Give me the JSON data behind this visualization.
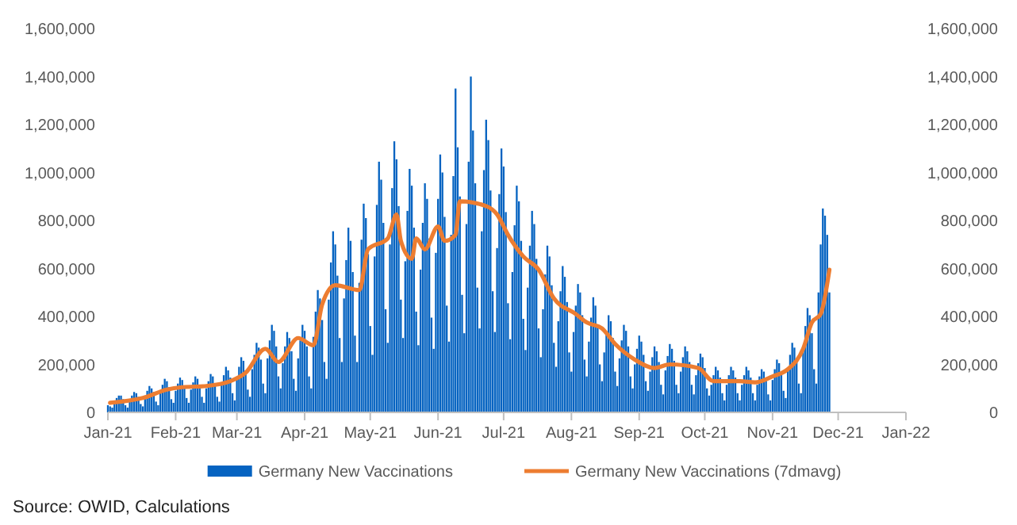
{
  "chart_data": {
    "type": "bar",
    "x": [
      "2021-01-01",
      "2021-01-02",
      "2021-01-03",
      "2021-01-04",
      "2021-01-05",
      "2021-01-06",
      "2021-01-07",
      "2021-01-08",
      "2021-01-09",
      "2021-01-10",
      "2021-01-11",
      "2021-01-12",
      "2021-01-13",
      "2021-01-14",
      "2021-01-15",
      "2021-01-16",
      "2021-01-17",
      "2021-01-18",
      "2021-01-19",
      "2021-01-20",
      "2021-01-21",
      "2021-01-22",
      "2021-01-23",
      "2021-01-24",
      "2021-01-25",
      "2021-01-26",
      "2021-01-27",
      "2021-01-28",
      "2021-01-29",
      "2021-01-30",
      "2021-01-31",
      "2021-02-01",
      "2021-02-02",
      "2021-02-03",
      "2021-02-04",
      "2021-02-05",
      "2021-02-06",
      "2021-02-07",
      "2021-02-08",
      "2021-02-09",
      "2021-02-10",
      "2021-02-11",
      "2021-02-12",
      "2021-02-13",
      "2021-02-14",
      "2021-02-15",
      "2021-02-16",
      "2021-02-17",
      "2021-02-18",
      "2021-02-19",
      "2021-02-20",
      "2021-02-21",
      "2021-02-22",
      "2021-02-23",
      "2021-02-24",
      "2021-02-25",
      "2021-02-26",
      "2021-02-27",
      "2021-02-28",
      "2021-03-01",
      "2021-03-02",
      "2021-03-03",
      "2021-03-04",
      "2021-03-05",
      "2021-03-06",
      "2021-03-07",
      "2021-03-08",
      "2021-03-09",
      "2021-03-10",
      "2021-03-11",
      "2021-03-12",
      "2021-03-13",
      "2021-03-14",
      "2021-03-15",
      "2021-03-16",
      "2021-03-17",
      "2021-03-18",
      "2021-03-19",
      "2021-03-20",
      "2021-03-21",
      "2021-03-22",
      "2021-03-23",
      "2021-03-24",
      "2021-03-25",
      "2021-03-26",
      "2021-03-27",
      "2021-03-28",
      "2021-03-29",
      "2021-03-30",
      "2021-03-31",
      "2021-04-01",
      "2021-04-02",
      "2021-04-03",
      "2021-04-04",
      "2021-04-05",
      "2021-04-06",
      "2021-04-07",
      "2021-04-08",
      "2021-04-09",
      "2021-04-10",
      "2021-04-11",
      "2021-04-12",
      "2021-04-13",
      "2021-04-14",
      "2021-04-15",
      "2021-04-16",
      "2021-04-17",
      "2021-04-18",
      "2021-04-19",
      "2021-04-20",
      "2021-04-21",
      "2021-04-22",
      "2021-04-23",
      "2021-04-24",
      "2021-04-25",
      "2021-04-26",
      "2021-04-27",
      "2021-04-28",
      "2021-04-29",
      "2021-04-30",
      "2021-05-01",
      "2021-05-02",
      "2021-05-03",
      "2021-05-04",
      "2021-05-05",
      "2021-05-06",
      "2021-05-07",
      "2021-05-08",
      "2021-05-09",
      "2021-05-10",
      "2021-05-11",
      "2021-05-12",
      "2021-05-13",
      "2021-05-14",
      "2021-05-15",
      "2021-05-16",
      "2021-05-17",
      "2021-05-18",
      "2021-05-19",
      "2021-05-20",
      "2021-05-21",
      "2021-05-22",
      "2021-05-23",
      "2021-05-24",
      "2021-05-25",
      "2021-05-26",
      "2021-05-27",
      "2021-05-28",
      "2021-05-29",
      "2021-05-30",
      "2021-05-31",
      "2021-06-01",
      "2021-06-02",
      "2021-06-03",
      "2021-06-04",
      "2021-06-05",
      "2021-06-06",
      "2021-06-07",
      "2021-06-08",
      "2021-06-09",
      "2021-06-10",
      "2021-06-11",
      "2021-06-12",
      "2021-06-13",
      "2021-06-14",
      "2021-06-15",
      "2021-06-16",
      "2021-06-17",
      "2021-06-18",
      "2021-06-19",
      "2021-06-20",
      "2021-06-21",
      "2021-06-22",
      "2021-06-23",
      "2021-06-24",
      "2021-06-25",
      "2021-06-26",
      "2021-06-27",
      "2021-06-28",
      "2021-06-29",
      "2021-06-30",
      "2021-07-01",
      "2021-07-02",
      "2021-07-03",
      "2021-07-04",
      "2021-07-05",
      "2021-07-06",
      "2021-07-07",
      "2021-07-08",
      "2021-07-09",
      "2021-07-10",
      "2021-07-11",
      "2021-07-12",
      "2021-07-13",
      "2021-07-14",
      "2021-07-15",
      "2021-07-16",
      "2021-07-17",
      "2021-07-18",
      "2021-07-19",
      "2021-07-20",
      "2021-07-21",
      "2021-07-22",
      "2021-07-23",
      "2021-07-24",
      "2021-07-25",
      "2021-07-26",
      "2021-07-27",
      "2021-07-28",
      "2021-07-29",
      "2021-07-30",
      "2021-07-31",
      "2021-08-01",
      "2021-08-02",
      "2021-08-03",
      "2021-08-04",
      "2021-08-05",
      "2021-08-06",
      "2021-08-07",
      "2021-08-08",
      "2021-08-09",
      "2021-08-10",
      "2021-08-11",
      "2021-08-12",
      "2021-08-13",
      "2021-08-14",
      "2021-08-15",
      "2021-08-16",
      "2021-08-17",
      "2021-08-18",
      "2021-08-19",
      "2021-08-20",
      "2021-08-21",
      "2021-08-22",
      "2021-08-23",
      "2021-08-24",
      "2021-08-25",
      "2021-08-26",
      "2021-08-27",
      "2021-08-28",
      "2021-08-29",
      "2021-08-30",
      "2021-08-31",
      "2021-09-01",
      "2021-09-02",
      "2021-09-03",
      "2021-09-04",
      "2021-09-05",
      "2021-09-06",
      "2021-09-07",
      "2021-09-08",
      "2021-09-09",
      "2021-09-10",
      "2021-09-11",
      "2021-09-12",
      "2021-09-13",
      "2021-09-14",
      "2021-09-15",
      "2021-09-16",
      "2021-09-17",
      "2021-09-18",
      "2021-09-19",
      "2021-09-20",
      "2021-09-21",
      "2021-09-22",
      "2021-09-23",
      "2021-09-24",
      "2021-09-25",
      "2021-09-26",
      "2021-09-27",
      "2021-09-28",
      "2021-09-29",
      "2021-09-30",
      "2021-10-01",
      "2021-10-02",
      "2021-10-03",
      "2021-10-04",
      "2021-10-05",
      "2021-10-06",
      "2021-10-07",
      "2021-10-08",
      "2021-10-09",
      "2021-10-10",
      "2021-10-11",
      "2021-10-12",
      "2021-10-13",
      "2021-10-14",
      "2021-10-15",
      "2021-10-16",
      "2021-10-17",
      "2021-10-18",
      "2021-10-19",
      "2021-10-20",
      "2021-10-21",
      "2021-10-22",
      "2021-10-23",
      "2021-10-24",
      "2021-10-25",
      "2021-10-26",
      "2021-10-27",
      "2021-10-28",
      "2021-10-29",
      "2021-10-30",
      "2021-10-31",
      "2021-11-01",
      "2021-11-02",
      "2021-11-03",
      "2021-11-04",
      "2021-11-05",
      "2021-11-06",
      "2021-11-07",
      "2021-11-08",
      "2021-11-09",
      "2021-11-10",
      "2021-11-11",
      "2021-11-12",
      "2021-11-13",
      "2021-11-14",
      "2021-11-15",
      "2021-11-16",
      "2021-11-17",
      "2021-11-18",
      "2021-11-19",
      "2021-11-20",
      "2021-11-21",
      "2021-11-22",
      "2021-11-23",
      "2021-11-24",
      "2021-11-25",
      "2021-11-26",
      "2021-11-27"
    ],
    "series": [
      {
        "name": "Germany New Vaccinations",
        "color": "#0563c1",
        "values": [
          30000,
          25000,
          20000,
          45000,
          60000,
          70000,
          70000,
          55000,
          30000,
          20000,
          55000,
          70000,
          85000,
          80000,
          65000,
          35000,
          25000,
          70000,
          90000,
          110000,
          100000,
          85000,
          45000,
          30000,
          85000,
          115000,
          140000,
          130000,
          105000,
          55000,
          40000,
          90000,
          120000,
          145000,
          135000,
          110000,
          60000,
          40000,
          95000,
          125000,
          150000,
          140000,
          115000,
          65000,
          40000,
          100000,
          130000,
          160000,
          150000,
          120000,
          65000,
          45000,
          115000,
          155000,
          190000,
          175000,
          145000,
          80000,
          50000,
          145000,
          190000,
          230000,
          215000,
          175000,
          95000,
          65000,
          180000,
          240000,
          290000,
          270000,
          220000,
          120000,
          80000,
          225000,
          300000,
          365000,
          340000,
          275000,
          150000,
          100000,
          205000,
          275000,
          335000,
          310000,
          255000,
          140000,
          90000,
          225000,
          300000,
          365000,
          340000,
          275000,
          150000,
          100000,
          315000,
          420000,
          510000,
          475000,
          385000,
          210000,
          140000,
          470000,
          625000,
          755000,
          700000,
          570000,
          310000,
          210000,
          475000,
          635000,
          770000,
          715000,
          585000,
          320000,
          210000,
          540000,
          720000,
          870000,
          810000,
          660000,
          360000,
          240000,
          650000,
          865000,
          1045000,
          970000,
          790000,
          430000,
          290000,
          700000,
          935000,
          1130000,
          1055000,
          860000,
          470000,
          310000,
          630000,
          840000,
          1015000,
          945000,
          770000,
          420000,
          280000,
          595000,
          790000,
          955000,
          890000,
          725000,
          395000,
          265000,
          665000,
          890000,
          1075000,
          1000000,
          815000,
          445000,
          295000,
          740000,
          985000,
          1350000,
          1105000,
          900000,
          490000,
          330000,
          785000,
          1045000,
          1400000,
          1175000,
          955000,
          520000,
          350000,
          755000,
          1010000,
          1220000,
          1135000,
          925000,
          505000,
          335000,
          685000,
          910000,
          1100000,
          1025000,
          835000,
          455000,
          305000,
          585000,
          780000,
          945000,
          880000,
          715000,
          390000,
          260000,
          520000,
          695000,
          840000,
          785000,
          640000,
          350000,
          230000,
          430000,
          575000,
          695000,
          650000,
          530000,
          290000,
          190000,
          380000,
          505000,
          610000,
          565000,
          460000,
          250000,
          170000,
          335000,
          445000,
          535000,
          500000,
          405000,
          220000,
          150000,
          295000,
          395000,
          480000,
          445000,
          365000,
          200000,
          130000,
          250000,
          335000,
          405000,
          380000,
          310000,
          170000,
          110000,
          225000,
          300000,
          365000,
          340000,
          275000,
          150000,
          100000,
          200000,
          265000,
          320000,
          295000,
          240000,
          130000,
          90000,
          170000,
          230000,
          275000,
          255000,
          210000,
          115000,
          75000,
          175000,
          235000,
          285000,
          265000,
          215000,
          115000,
          80000,
          170000,
          230000,
          275000,
          255000,
          210000,
          115000,
          75000,
          155000,
          205000,
          245000,
          230000,
          185000,
          100000,
          70000,
          115000,
          155000,
          190000,
          175000,
          145000,
          80000,
          50000,
          115000,
          155000,
          190000,
          175000,
          145000,
          80000,
          50000,
          115000,
          155000,
          190000,
          175000,
          145000,
          80000,
          50000,
          115000,
          150000,
          180000,
          170000,
          140000,
          75000,
          50000,
          135000,
          180000,
          220000,
          205000,
          165000,
          90000,
          60000,
          180000,
          240000,
          290000,
          270000,
          220000,
          120000,
          80000,
          270000,
          360000,
          435000,
          405000,
          330000,
          180000,
          120000,
          500000,
          700000,
          850000,
          820000,
          740000,
          500000
        ]
      },
      {
        "name": "Germany New Vaccinations (7dmavg)",
        "type": "line",
        "color": "#ed7d31",
        "x": [
          "2021-01-02",
          "2021-01-17",
          "2021-01-28",
          "2021-02-04",
          "2021-02-15",
          "2021-02-26",
          "2021-03-05",
          "2021-03-14",
          "2021-03-20",
          "2021-03-29",
          "2021-04-05",
          "2021-04-09",
          "2021-04-15",
          "2021-04-26",
          "2021-04-30",
          "2021-05-09",
          "2021-05-13",
          "2021-05-15",
          "2021-05-20",
          "2021-05-22",
          "2021-05-26",
          "2021-06-01",
          "2021-06-04",
          "2021-06-09",
          "2021-06-11",
          "2021-06-23",
          "2021-06-28",
          "2021-07-03",
          "2021-07-10",
          "2021-07-17",
          "2021-07-24",
          "2021-08-03",
          "2021-08-08",
          "2021-08-15",
          "2021-08-21",
          "2021-08-30",
          "2021-09-08",
          "2021-09-15",
          "2021-09-28",
          "2021-10-05",
          "2021-10-17",
          "2021-10-24",
          "2021-11-01",
          "2021-11-08",
          "2021-11-15",
          "2021-11-19",
          "2021-11-23",
          "2021-11-27"
        ],
        "values": [
          40000,
          60000,
          95000,
          105000,
          110000,
          130000,
          165000,
          265000,
          210000,
          310000,
          280000,
          450000,
          530000,
          510000,
          680000,
          725000,
          825000,
          715000,
          640000,
          725000,
          680000,
          775000,
          715000,
          740000,
          880000,
          860000,
          825000,
          740000,
          650000,
          595000,
          475000,
          410000,
          375000,
          350000,
          285000,
          220000,
          185000,
          200000,
          185000,
          130000,
          130000,
          125000,
          150000,
          180000,
          265000,
          375000,
          410000,
          595000
        ]
      }
    ],
    "xlim": [
      "2021-01-01",
      "2022-01-01"
    ],
    "xticks": [
      {
        "value": "2021-01-01",
        "label": "Jan-21"
      },
      {
        "value": "2021-02-01",
        "label": "Feb-21"
      },
      {
        "value": "2021-03-01",
        "label": "Mar-21"
      },
      {
        "value": "2021-04-01",
        "label": "Apr-21"
      },
      {
        "value": "2021-05-01",
        "label": "May-21"
      },
      {
        "value": "2021-06-01",
        "label": "Jun-21"
      },
      {
        "value": "2021-07-01",
        "label": "Jul-21"
      },
      {
        "value": "2021-08-01",
        "label": "Aug-21"
      },
      {
        "value": "2021-09-01",
        "label": "Sep-21"
      },
      {
        "value": "2021-10-01",
        "label": "Oct-21"
      },
      {
        "value": "2021-11-01",
        "label": "Nov-21"
      },
      {
        "value": "2021-12-01",
        "label": "Dec-21"
      },
      {
        "value": "2022-01-01",
        "label": "Jan-22"
      }
    ],
    "ylim": [
      0,
      1600000
    ],
    "yticks": [
      0,
      {
        "value": 200000,
        "label": "200,000"
      },
      {
        "value": 400000,
        "label": "400,000"
      },
      {
        "value": 600000,
        "label": "600,000"
      },
      {
        "value": 800000,
        "label": "800,000"
      },
      {
        "value": 1000000,
        "label": "1,000,000"
      },
      {
        "value": 1200000,
        "label": "1,200,000"
      },
      {
        "value": 1400000,
        "label": "1,400,000"
      },
      {
        "value": 1600000,
        "label": "1,600,000"
      }
    ],
    "y2lim": [
      0,
      1600000
    ],
    "y2ticks": [
      0,
      {
        "value": 200000,
        "label": "200,000"
      },
      {
        "value": 400000,
        "label": "400,000"
      },
      {
        "value": 600000,
        "label": "600,000"
      },
      {
        "value": 800000,
        "label": "800,000"
      },
      {
        "value": 1000000,
        "label": "1,000,000"
      },
      {
        "value": 1200000,
        "label": "1,200,000"
      },
      {
        "value": 1400000,
        "label": "1,400,000"
      },
      {
        "value": 1600000,
        "label": "1,600,000"
      }
    ],
    "grid": false,
    "legend": "bottom",
    "line_style": "solid",
    "marker": "none",
    "annotations": [
      "Source: OWID, Calculations"
    ]
  }
}
